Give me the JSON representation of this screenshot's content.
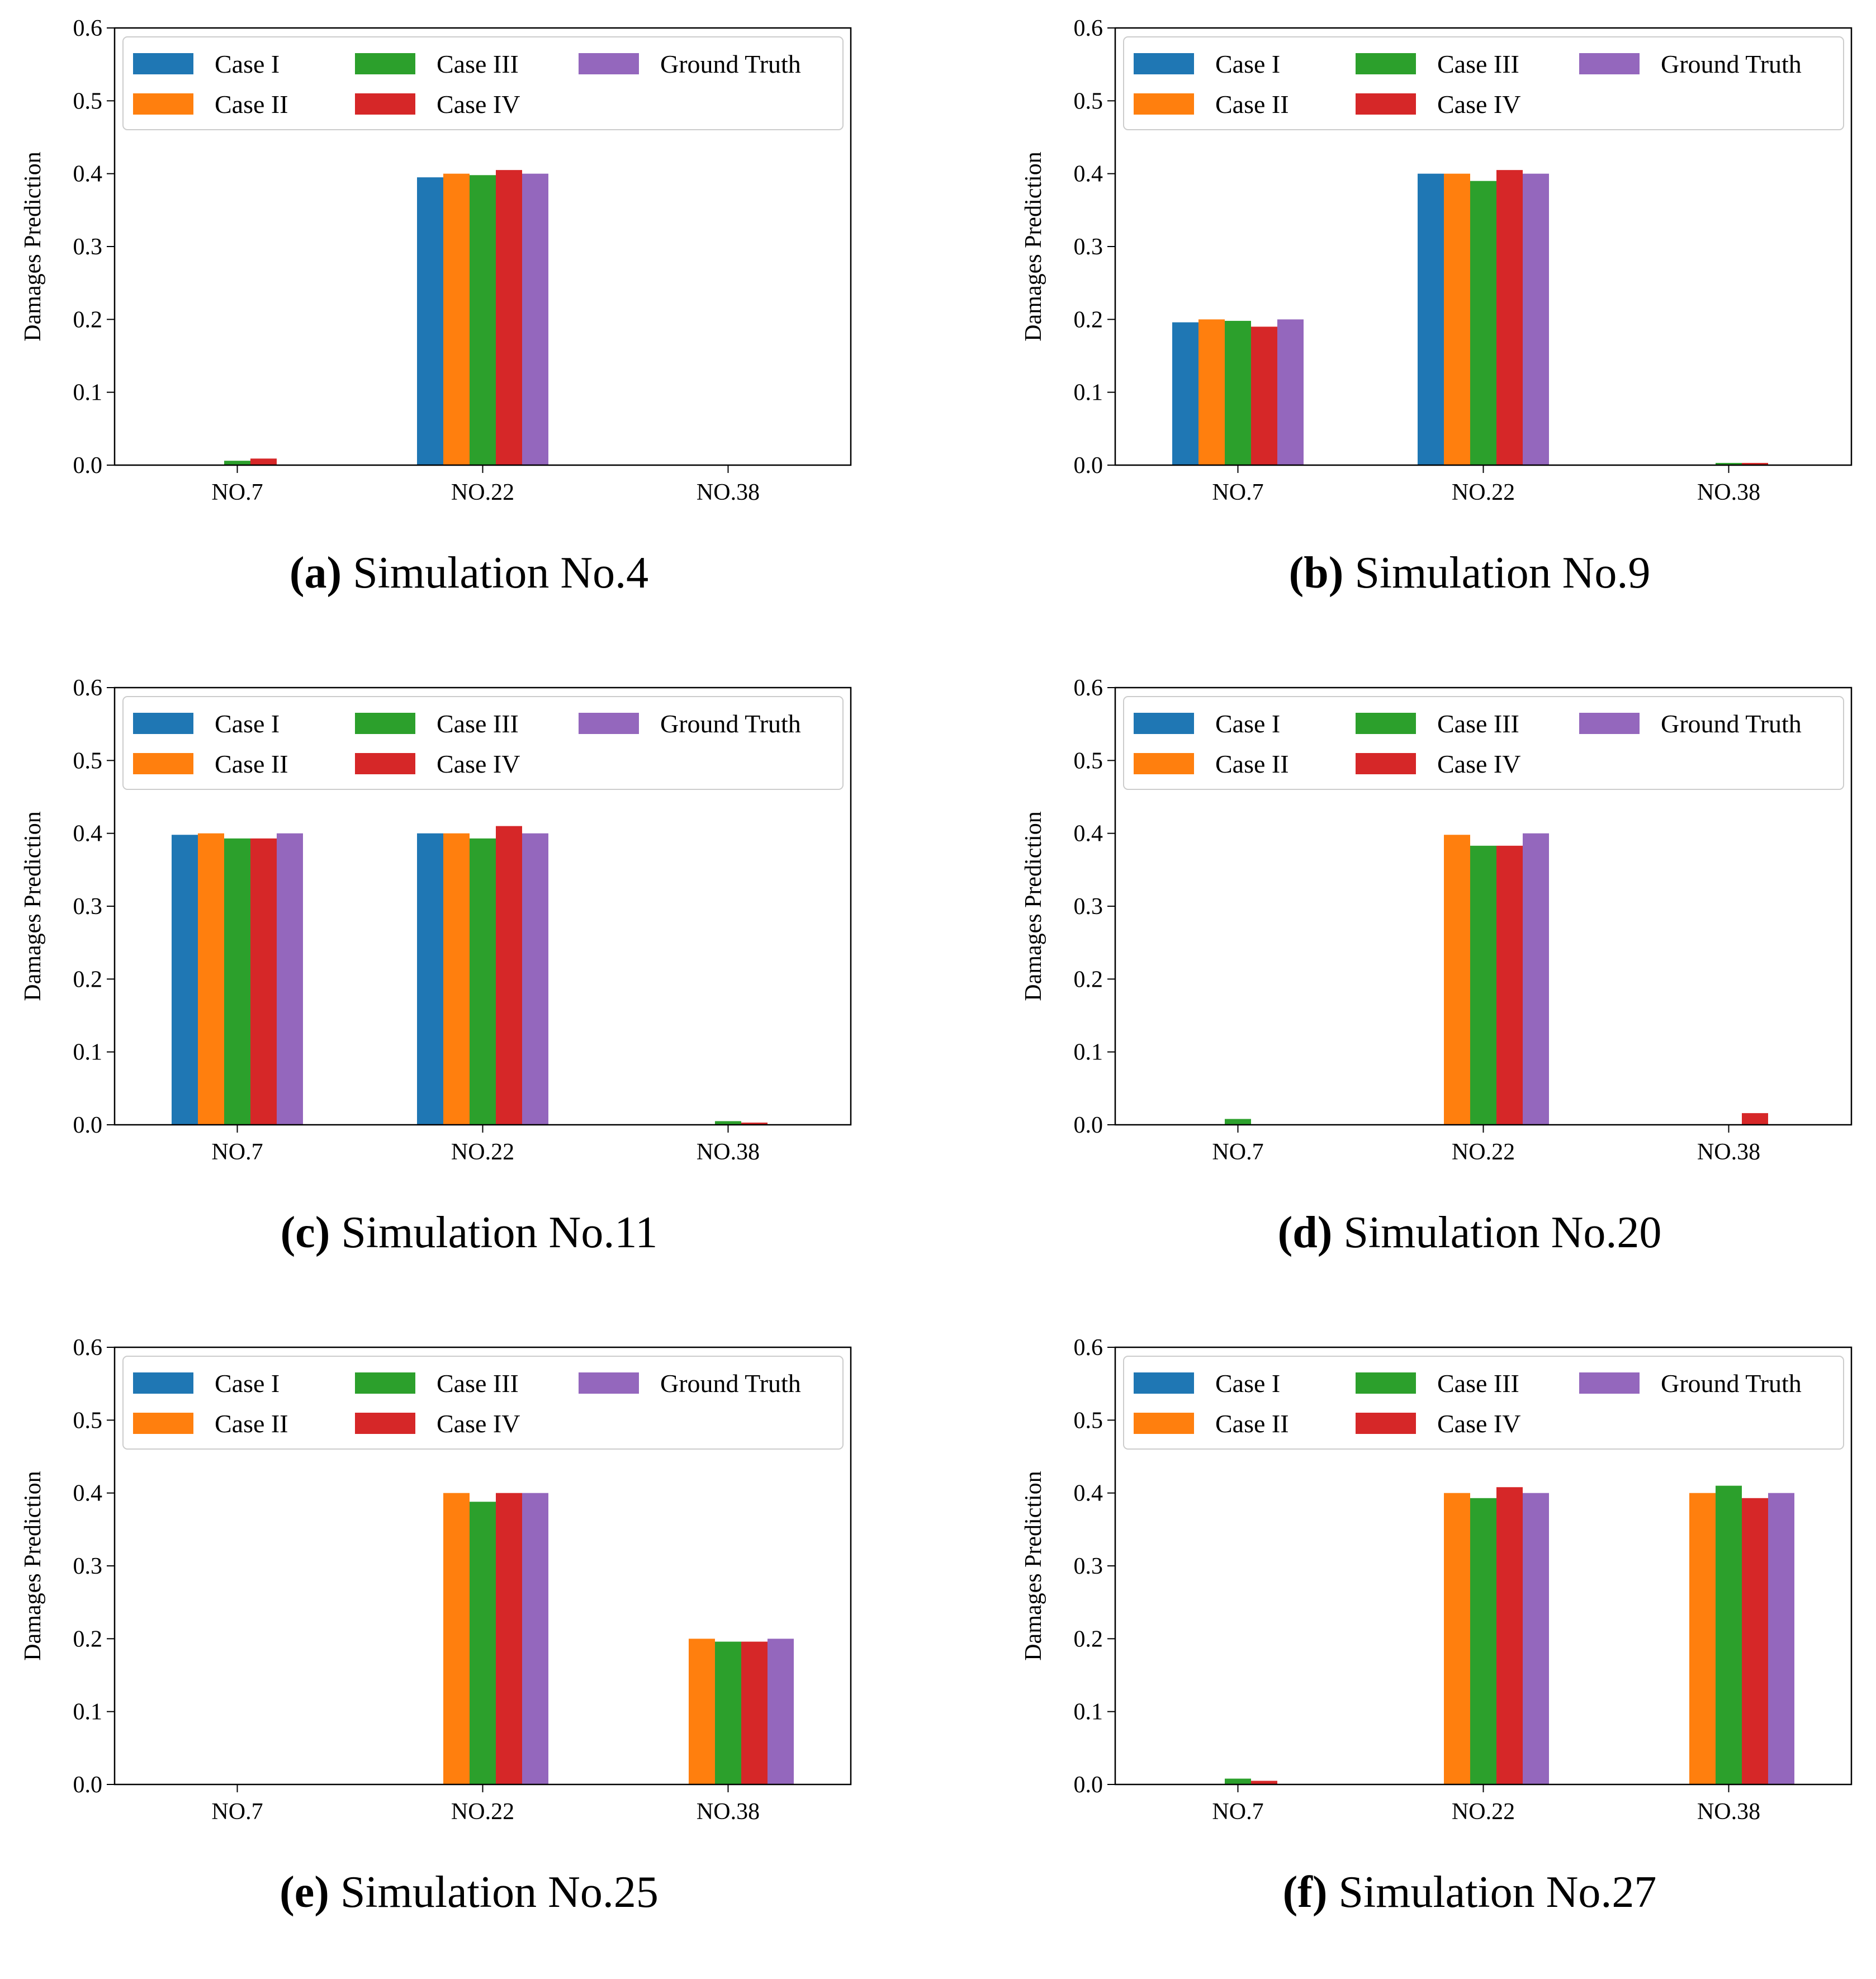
{
  "figure": {
    "series_colors": {
      "Case I": "#1f77b4",
      "Case II": "#ff7f0e",
      "Case III": "#2ca02c",
      "Case IV": "#d62728",
      "Ground Truth": "#9467bd"
    }
  },
  "chart_data": [
    {
      "type": "bar",
      "caption_label": "(a)",
      "caption_text": " Simulation No.4",
      "title": "Simulation No.4",
      "xlabel": "",
      "ylabel": "Damages Prediction",
      "categories": [
        "NO.7",
        "NO.22",
        "NO.38"
      ],
      "ylim": [
        0,
        0.6
      ],
      "yticks": [
        "0.0",
        "0.1",
        "0.2",
        "0.3",
        "0.4",
        "0.5",
        "0.6"
      ],
      "legend_position": "top",
      "series": [
        {
          "name": "Case I",
          "values": [
            0.0,
            0.395,
            0.0
          ]
        },
        {
          "name": "Case II",
          "values": [
            0.0,
            0.4,
            0.0
          ]
        },
        {
          "name": "Case III",
          "values": [
            0.006,
            0.398,
            0.0
          ]
        },
        {
          "name": "Case IV",
          "values": [
            0.009,
            0.405,
            0.0
          ]
        },
        {
          "name": "Ground Truth",
          "values": [
            0.0,
            0.4,
            0.0
          ]
        }
      ]
    },
    {
      "type": "bar",
      "caption_label": "(b)",
      "caption_text": " Simulation No.9",
      "title": "Simulation No.9",
      "xlabel": "",
      "ylabel": "Damages Prediction",
      "categories": [
        "NO.7",
        "NO.22",
        "NO.38"
      ],
      "ylim": [
        0,
        0.6
      ],
      "yticks": [
        "0.0",
        "0.1",
        "0.2",
        "0.3",
        "0.4",
        "0.5",
        "0.6"
      ],
      "legend_position": "top",
      "series": [
        {
          "name": "Case I",
          "values": [
            0.196,
            0.4,
            0.0
          ]
        },
        {
          "name": "Case II",
          "values": [
            0.2,
            0.4,
            0.0
          ]
        },
        {
          "name": "Case III",
          "values": [
            0.198,
            0.39,
            0.003
          ]
        },
        {
          "name": "Case IV",
          "values": [
            0.19,
            0.405,
            0.003
          ]
        },
        {
          "name": "Ground Truth",
          "values": [
            0.2,
            0.4,
            0.0
          ]
        }
      ]
    },
    {
      "type": "bar",
      "caption_label": "(c)",
      "caption_text": " Simulation No.11",
      "title": "Simulation No.11",
      "xlabel": "",
      "ylabel": "Damages Prediction",
      "categories": [
        "NO.7",
        "NO.22",
        "NO.38"
      ],
      "ylim": [
        0,
        0.6
      ],
      "yticks": [
        "0.0",
        "0.1",
        "0.2",
        "0.3",
        "0.4",
        "0.5",
        "0.6"
      ],
      "legend_position": "top",
      "series": [
        {
          "name": "Case I",
          "values": [
            0.398,
            0.4,
            0.0
          ]
        },
        {
          "name": "Case II",
          "values": [
            0.4,
            0.4,
            0.0
          ]
        },
        {
          "name": "Case III",
          "values": [
            0.393,
            0.393,
            0.005
          ]
        },
        {
          "name": "Case IV",
          "values": [
            0.393,
            0.41,
            0.003
          ]
        },
        {
          "name": "Ground Truth",
          "values": [
            0.4,
            0.4,
            0.0
          ]
        }
      ]
    },
    {
      "type": "bar",
      "caption_label": "(d)",
      "caption_text": " Simulation No.20",
      "title": "Simulation No.20",
      "xlabel": "",
      "ylabel": "Damages Prediction",
      "categories": [
        "NO.7",
        "NO.22",
        "NO.38"
      ],
      "ylim": [
        0,
        0.6
      ],
      "yticks": [
        "0.0",
        "0.1",
        "0.2",
        "0.3",
        "0.4",
        "0.5",
        "0.6"
      ],
      "legend_position": "top",
      "series": [
        {
          "name": "Case I",
          "values": [
            0.0,
            0.0,
            0.0
          ]
        },
        {
          "name": "Case II",
          "values": [
            0.0,
            0.398,
            0.0
          ]
        },
        {
          "name": "Case III",
          "values": [
            0.008,
            0.383,
            0.0
          ]
        },
        {
          "name": "Case IV",
          "values": [
            0.0,
            0.383,
            0.016
          ]
        },
        {
          "name": "Ground Truth",
          "values": [
            0.0,
            0.4,
            0.0
          ]
        }
      ]
    },
    {
      "type": "bar",
      "caption_label": "(e)",
      "caption_text": " Simulation No.25",
      "title": "Simulation No.25",
      "xlabel": "",
      "ylabel": "Damages Prediction",
      "categories": [
        "NO.7",
        "NO.22",
        "NO.38"
      ],
      "ylim": [
        0,
        0.6
      ],
      "yticks": [
        "0.0",
        "0.1",
        "0.2",
        "0.3",
        "0.4",
        "0.5",
        "0.6"
      ],
      "legend_position": "top",
      "series": [
        {
          "name": "Case I",
          "values": [
            0.0,
            0.0,
            0.0
          ]
        },
        {
          "name": "Case II",
          "values": [
            0.0,
            0.4,
            0.2
          ]
        },
        {
          "name": "Case III",
          "values": [
            0.0,
            0.388,
            0.196
          ]
        },
        {
          "name": "Case IV",
          "values": [
            0.0,
            0.4,
            0.196
          ]
        },
        {
          "name": "Ground Truth",
          "values": [
            0.0,
            0.4,
            0.2
          ]
        }
      ]
    },
    {
      "type": "bar",
      "caption_label": "(f)",
      "caption_text": " Simulation No.27",
      "title": "Simulation No.27",
      "xlabel": "",
      "ylabel": "Damages Prediction",
      "categories": [
        "NO.7",
        "NO.22",
        "NO.38"
      ],
      "ylim": [
        0,
        0.6
      ],
      "yticks": [
        "0.0",
        "0.1",
        "0.2",
        "0.3",
        "0.4",
        "0.5",
        "0.6"
      ],
      "legend_position": "top",
      "series": [
        {
          "name": "Case I",
          "values": [
            0.0,
            0.0,
            0.0
          ]
        },
        {
          "name": "Case II",
          "values": [
            0.0,
            0.4,
            0.4
          ]
        },
        {
          "name": "Case III",
          "values": [
            0.008,
            0.393,
            0.41
          ]
        },
        {
          "name": "Case IV",
          "values": [
            0.005,
            0.408,
            0.393
          ]
        },
        {
          "name": "Ground Truth",
          "values": [
            0.0,
            0.4,
            0.4
          ]
        }
      ]
    }
  ]
}
